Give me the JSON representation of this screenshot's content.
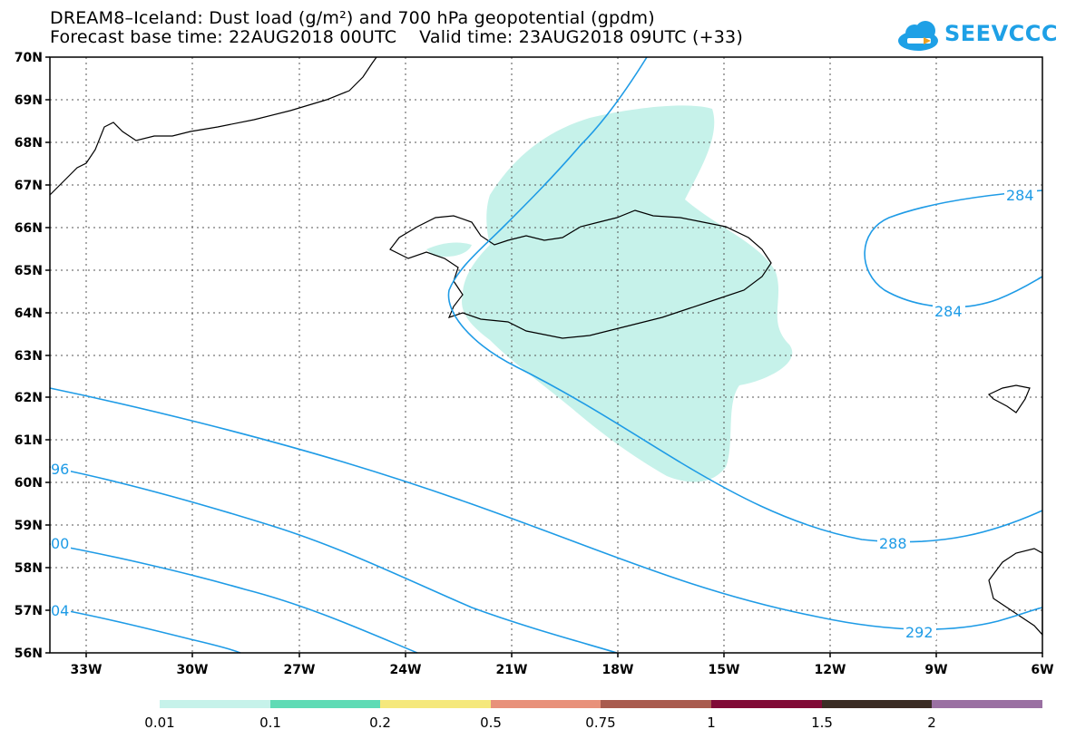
{
  "title_line1": "DREAM8–Iceland: Dust load (g/m²) and 700 hPa geopotential (gpdm)",
  "title_line2": "Forecast base time: 22AUG2018 00UTC    Valid time: 23AUG2018 09UTC (+33)",
  "logo_text": "SEEVCCC",
  "map": {
    "lat_labels": [
      "56N",
      "57N",
      "58N",
      "59N",
      "60N",
      "61N",
      "62N",
      "63N",
      "64N",
      "65N",
      "66N",
      "67N",
      "68N",
      "69N",
      "70N"
    ],
    "lon_labels": [
      "33W",
      "30W",
      "27W",
      "24W",
      "21W",
      "18W",
      "15W",
      "12W",
      "9W",
      "6W"
    ]
  },
  "contour_labels": [
    {
      "text": "284"
    },
    {
      "text": "284"
    },
    {
      "text": "288"
    },
    {
      "text": "292"
    },
    {
      "text": "96"
    },
    {
      "text": "00"
    },
    {
      "text": "04"
    }
  ],
  "colorbar": {
    "colors": [
      "#c6f2ea",
      "#5fdbb5",
      "#f5e87c",
      "#e8917a",
      "#a95b4e",
      "#800a36",
      "#3a2c24",
      "#9a70a2"
    ],
    "labels": [
      "0.01",
      "0.1",
      "0.2",
      "0.5",
      "0.75",
      "1",
      "1.5",
      "2"
    ]
  },
  "colors": {
    "contour": "#1e9be6",
    "dust_shading": "#c6f2ea",
    "coast": "#000000"
  }
}
